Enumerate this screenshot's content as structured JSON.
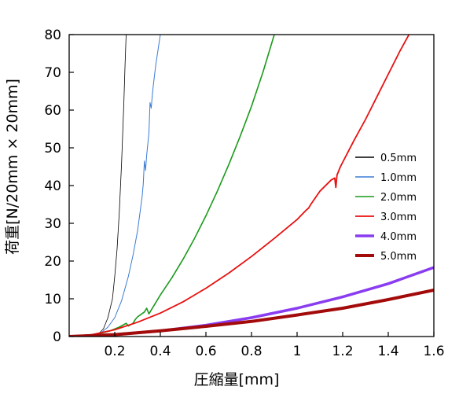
{
  "chart_data": {
    "type": "line",
    "xlabel": "圧縮量[mm]",
    "ylabel": "荷重[N/20mm × 20mm]",
    "xlim": [
      0,
      1.6
    ],
    "ylim": [
      0,
      80
    ],
    "xticks": [
      0.2,
      0.4,
      0.6,
      0.8,
      1,
      1.2,
      1.4,
      1.6
    ],
    "xtick_labels": [
      "0.2",
      "0.4",
      "0.6",
      "0.8",
      "1",
      "1.2",
      "1.4",
      "1.6"
    ],
    "yticks": [
      0,
      10,
      20,
      30,
      40,
      50,
      60,
      70,
      80
    ],
    "ytick_labels": [
      "0",
      "10",
      "20",
      "30",
      "40",
      "50",
      "60",
      "70",
      "80"
    ],
    "grid": false,
    "legend_position": "right-middle",
    "series": [
      {
        "name": "0.5mm",
        "color": "#000000",
        "width": 0.8,
        "x": [
          0.0,
          0.1,
          0.13,
          0.15,
          0.17,
          0.19,
          0.2,
          0.21,
          0.22,
          0.23,
          0.24,
          0.245,
          0.25
        ],
        "y": [
          0,
          0.2,
          0.8,
          2,
          5,
          10,
          16,
          23,
          33,
          46,
          62,
          72,
          80
        ]
      },
      {
        "name": "1.0mm",
        "color": "#3a7bd5",
        "width": 1.0,
        "x": [
          0.0,
          0.1,
          0.14,
          0.17,
          0.2,
          0.23,
          0.26,
          0.28,
          0.3,
          0.32,
          0.325,
          0.33,
          0.335,
          0.34,
          0.35,
          0.355,
          0.36,
          0.365,
          0.37,
          0.38,
          0.39,
          0.4
        ],
        "y": [
          0,
          0.3,
          1,
          2.5,
          5,
          9.5,
          16,
          21.5,
          28,
          37,
          40.5,
          46.5,
          44,
          48,
          54,
          62,
          60.5,
          64,
          67,
          72,
          76,
          80
        ]
      },
      {
        "name": "2.0mm",
        "color": "#1a9a1a",
        "width": 1.6,
        "x": [
          0.0,
          0.12,
          0.18,
          0.22,
          0.25,
          0.26,
          0.28,
          0.29,
          0.3,
          0.33,
          0.34,
          0.35,
          0.37,
          0.4,
          0.45,
          0.5,
          0.55,
          0.6,
          0.65,
          0.7,
          0.75,
          0.8,
          0.85,
          0.9
        ],
        "y": [
          0,
          0.6,
          1.5,
          2.5,
          3.5,
          2.8,
          3.5,
          4.5,
          5.2,
          6.5,
          7.5,
          6,
          8,
          11,
          15.5,
          20.5,
          26,
          32,
          38.5,
          45.5,
          53,
          61,
          70,
          80
        ]
      },
      {
        "name": "3.0mm",
        "color": "#e81010",
        "width": 1.8,
        "x": [
          0.0,
          0.1,
          0.2,
          0.3,
          0.4,
          0.5,
          0.6,
          0.7,
          0.8,
          0.9,
          1.0,
          1.04,
          1.05,
          1.06,
          1.1,
          1.15,
          1.165,
          1.17,
          1.175,
          1.19,
          1.25,
          1.3,
          1.35,
          1.4,
          1.45,
          1.5
        ],
        "y": [
          0,
          0.5,
          1.8,
          3.8,
          6.2,
          9.2,
          12.8,
          16.8,
          21.2,
          26,
          31,
          33.5,
          34,
          35,
          38.5,
          41.5,
          42,
          39.5,
          42.8,
          45,
          52,
          57.5,
          63.5,
          69.5,
          75.5,
          81
        ]
      },
      {
        "name": "4.0mm",
        "color": "#8a3cf0",
        "width": 3.5,
        "x": [
          0.0,
          0.2,
          0.4,
          0.6,
          0.8,
          1.0,
          1.2,
          1.4,
          1.6
        ],
        "y": [
          0,
          0.5,
          1.5,
          3,
          5,
          7.5,
          10.5,
          14,
          18.3
        ]
      },
      {
        "name": "5.0mm",
        "color": "#a30a0a",
        "width": 4.0,
        "x": [
          0.0,
          0.2,
          0.4,
          0.6,
          0.8,
          1.0,
          1.2,
          1.4,
          1.6
        ],
        "y": [
          0,
          0.5,
          1.5,
          2.7,
          4,
          5.7,
          7.5,
          9.8,
          12.3
        ]
      }
    ]
  }
}
